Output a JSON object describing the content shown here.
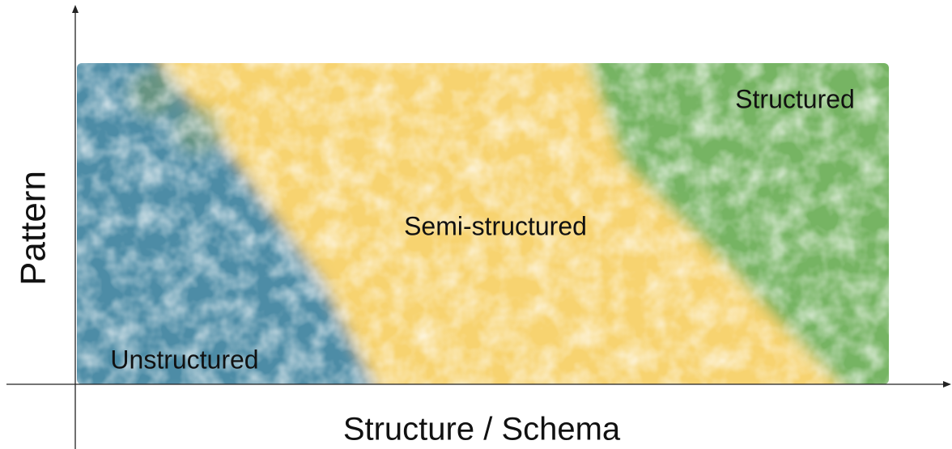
{
  "axes": {
    "y_label": "Pattern",
    "x_label": "Structure / Schema"
  },
  "regions": [
    {
      "label": "Unstructured"
    },
    {
      "label": "Semi-structured"
    },
    {
      "label": "Structured"
    }
  ]
}
